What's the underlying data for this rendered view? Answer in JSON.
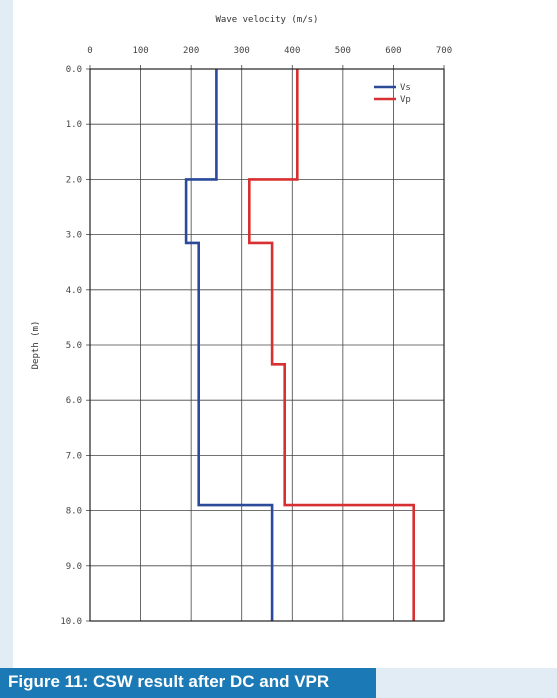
{
  "caption": "Figure 11: CSW result after DC and VPR",
  "chart_data": {
    "type": "line",
    "xlabel": "Wave velocity (m/s)",
    "ylabel": "Depth (m)",
    "xlim": [
      0,
      700
    ],
    "ylim": [
      0,
      10
    ],
    "y_inverted": true,
    "x_ticks": [
      "0",
      "100",
      "200",
      "300",
      "400",
      "500",
      "600",
      "700"
    ],
    "y_ticks": [
      "0.0",
      "1.0",
      "2.0",
      "3.0",
      "4.0",
      "5.0",
      "6.0",
      "7.0",
      "8.0",
      "9.0",
      "10.0"
    ],
    "grid": true,
    "legend_position": "top-right",
    "series": [
      {
        "name": "Vs",
        "color": "#2b4a9a",
        "points": [
          [
            250,
            0
          ],
          [
            250,
            2.0
          ],
          [
            190,
            2.0
          ],
          [
            190,
            3.15
          ],
          [
            215,
            3.15
          ],
          [
            215,
            7.9
          ],
          [
            360,
            7.9
          ],
          [
            360,
            10.0
          ]
        ]
      },
      {
        "name": "Vp",
        "color": "#d83030",
        "points": [
          [
            410,
            0
          ],
          [
            410,
            2.0
          ],
          [
            315,
            2.0
          ],
          [
            315,
            3.15
          ],
          [
            360,
            3.15
          ],
          [
            360,
            5.35
          ],
          [
            385,
            5.35
          ],
          [
            385,
            7.9
          ],
          [
            640,
            7.9
          ],
          [
            640,
            10.0
          ]
        ]
      }
    ]
  }
}
